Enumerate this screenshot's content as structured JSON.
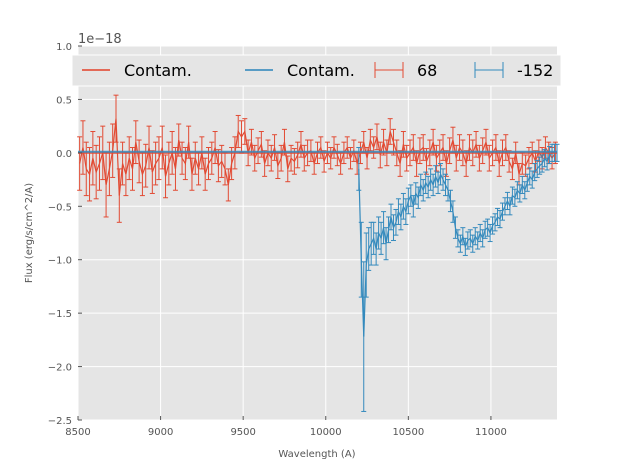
{
  "chart_data": {
    "type": "line",
    "title": "",
    "xlabel": "Wavelength (A)",
    "ylabel": "Flux (erg/s/cm^2/A)",
    "offset_text": "1e−18",
    "xlim": [
      8500,
      11400
    ],
    "ylim": [
      -2.5,
      1.0
    ],
    "x_ticks": [
      8500,
      9000,
      9500,
      10000,
      10500,
      11000
    ],
    "x_tick_labels": [
      "8500",
      "9000",
      "9500",
      "10000",
      "10500",
      "11000"
    ],
    "y_ticks": [
      1.0,
      0.5,
      0.0,
      -0.5,
      -1.0,
      -1.5,
      -2.0,
      -2.5
    ],
    "y_tick_labels": [
      "1.0",
      "0.5",
      "0.0",
      "−0.5",
      "−1.0",
      "−1.5",
      "−2.0",
      "−2.5"
    ],
    "grid": true,
    "legend_position": "top",
    "legend": [
      {
        "label": "Contam.",
        "kind": "line",
        "color": "#E24A33"
      },
      {
        "label": "Contam.",
        "kind": "line",
        "color": "#348ABD"
      },
      {
        "label": "68",
        "kind": "errorbar",
        "color": "#E24A33"
      },
      {
        "label": "-152",
        "kind": "errorbar",
        "color": "#348ABD"
      }
    ],
    "series": [
      {
        "name": "68",
        "color": "#E24A33",
        "x": [
          8510,
          8530,
          8550,
          8570,
          8590,
          8610,
          8630,
          8650,
          8670,
          8690,
          8710,
          8730,
          8750,
          8770,
          8790,
          8810,
          8830,
          8850,
          8870,
          8890,
          8910,
          8930,
          8950,
          8970,
          8990,
          9010,
          9030,
          9050,
          9070,
          9090,
          9110,
          9130,
          9150,
          9170,
          9190,
          9210,
          9230,
          9250,
          9270,
          9290,
          9310,
          9330,
          9350,
          9370,
          9390,
          9410,
          9430,
          9450,
          9470,
          9490,
          9510,
          9530,
          9550,
          9570,
          9590,
          9610,
          9630,
          9650,
          9670,
          9690,
          9710,
          9730,
          9750,
          9770,
          9790,
          9810,
          9830,
          9850,
          9870,
          9890,
          9910,
          9930,
          9950,
          9970,
          9990,
          10010,
          10030,
          10050,
          10070,
          10090,
          10110,
          10130,
          10150,
          10170,
          10190,
          10210,
          10230,
          10250,
          10270,
          10290,
          10310,
          10330,
          10350,
          10370,
          10390,
          10410,
          10430,
          10450,
          10470,
          10490,
          10510,
          10530,
          10550,
          10570,
          10590,
          10610,
          10630,
          10650,
          10670,
          10690,
          10710,
          10730,
          10750,
          10770,
          10790,
          10810,
          10830,
          10850,
          10870,
          10890,
          10910,
          10930,
          10950,
          10970,
          10990,
          11010,
          11030,
          11050,
          11070,
          11090,
          11110,
          11130,
          11150,
          11170,
          11190,
          11210,
          11230,
          11250,
          11270,
          11290,
          11310,
          11330,
          11350,
          11370,
          11390
        ],
        "y": [
          -0.1,
          0.05,
          -0.15,
          -0.2,
          -0.05,
          -0.18,
          -0.1,
          0.0,
          -0.3,
          -0.15,
          0.02,
          0.32,
          -0.4,
          -0.1,
          -0.2,
          -0.05,
          -0.15,
          0.1,
          -0.08,
          -0.2,
          -0.12,
          0.05,
          -0.18,
          -0.1,
          -0.05,
          0.05,
          -0.22,
          -0.1,
          0.0,
          -0.15,
          0.12,
          -0.05,
          -0.1,
          0.1,
          -0.2,
          -0.05,
          -0.15,
          0.0,
          -0.2,
          -0.1,
          -0.05,
          0.05,
          -0.12,
          -0.08,
          -0.15,
          -0.3,
          -0.1,
          0.0,
          0.2,
          0.15,
          0.2,
          0.0,
          0.1,
          -0.05,
          0.02,
          0.08,
          -0.1,
          0.0,
          -0.05,
          0.05,
          -0.12,
          -0.05,
          0.1,
          -0.15,
          -0.05,
          -0.08,
          -0.02,
          0.08,
          -0.05,
          0.0,
          0.02,
          -0.1,
          0.0,
          0.05,
          -0.08,
          0.0,
          -0.05,
          0.05,
          -0.02,
          -0.1,
          0.0,
          0.05,
          -0.05,
          0.02,
          -0.1,
          0.0,
          0.1,
          -0.05,
          0.12,
          0.05,
          0.15,
          -0.02,
          0.1,
          0.0,
          0.2,
          0.1,
          0.0,
          -0.1,
          0.08,
          -0.05,
          0.0,
          0.05,
          -0.1,
          0.02,
          0.05,
          -0.08,
          0.0,
          0.1,
          -0.05,
          0.0,
          0.05,
          -0.1,
          0.02,
          0.12,
          -0.05,
          0.05,
          0.0,
          -0.1,
          0.05,
          0.0,
          0.08,
          -0.05,
          0.02,
          0.1,
          -0.05,
          0.0,
          0.05,
          -0.1,
          0.0,
          0.05,
          -0.08,
          -0.15,
          0.0,
          -0.2,
          -0.1,
          -0.12,
          -0.05,
          0.0,
          -0.08,
          0.02,
          -0.05,
          0.05,
          0.0,
          -0.05,
          0.0
        ],
        "err": [
          0.25,
          0.25,
          0.25,
          0.25,
          0.25,
          0.25,
          0.25,
          0.25,
          0.3,
          0.25,
          0.25,
          0.22,
          0.25,
          0.2,
          0.2,
          0.2,
          0.2,
          0.2,
          0.2,
          0.2,
          0.2,
          0.2,
          0.2,
          0.2,
          0.2,
          0.2,
          0.2,
          0.2,
          0.2,
          0.2,
          0.15,
          0.15,
          0.15,
          0.15,
          0.15,
          0.15,
          0.15,
          0.15,
          0.15,
          0.15,
          0.15,
          0.15,
          0.15,
          0.15,
          0.15,
          0.15,
          0.15,
          0.15,
          0.15,
          0.15,
          0.12,
          0.12,
          0.12,
          0.12,
          0.12,
          0.12,
          0.12,
          0.12,
          0.12,
          0.12,
          0.12,
          0.12,
          0.12,
          0.12,
          0.12,
          0.12,
          0.12,
          0.12,
          0.12,
          0.12,
          0.1,
          0.1,
          0.1,
          0.1,
          0.1,
          0.1,
          0.1,
          0.1,
          0.1,
          0.1,
          0.1,
          0.1,
          0.1,
          0.1,
          0.1,
          0.1,
          0.1,
          0.1,
          0.1,
          0.1,
          0.12,
          0.12,
          0.12,
          0.12,
          0.12,
          0.12,
          0.12,
          0.12,
          0.12,
          0.12,
          0.12,
          0.12,
          0.12,
          0.12,
          0.12,
          0.12,
          0.12,
          0.12,
          0.12,
          0.12,
          0.12,
          0.12,
          0.12,
          0.12,
          0.12,
          0.12,
          0.12,
          0.12,
          0.12,
          0.12,
          0.12,
          0.12,
          0.12,
          0.12,
          0.12,
          0.12,
          0.12,
          0.12,
          0.12,
          0.12,
          0.1,
          0.1,
          0.1,
          0.1,
          0.1,
          0.1,
          0.1,
          0.1,
          0.1,
          0.1,
          0.1,
          0.1,
          0.1,
          0.1,
          0.1
        ]
      },
      {
        "name": "-152",
        "color": "#348ABD",
        "x": [
          10200,
          10215,
          10230,
          10245,
          10260,
          10275,
          10290,
          10305,
          10320,
          10335,
          10350,
          10365,
          10380,
          10395,
          10410,
          10425,
          10440,
          10455,
          10470,
          10485,
          10500,
          10515,
          10530,
          10545,
          10560,
          10575,
          10590,
          10605,
          10620,
          10635,
          10650,
          10665,
          10680,
          10695,
          10710,
          10725,
          10740,
          10755,
          10770,
          10785,
          10800,
          10815,
          10830,
          10845,
          10860,
          10875,
          10890,
          10905,
          10920,
          10935,
          10950,
          10965,
          10980,
          10995,
          11010,
          11025,
          11040,
          11055,
          11070,
          11085,
          11100,
          11115,
          11130,
          11145,
          11160,
          11175,
          11190,
          11205,
          11220,
          11235,
          11250,
          11265,
          11280,
          11295,
          11310,
          11325,
          11340,
          11355,
          11370,
          11385,
          11400
        ],
        "y": [
          -0.15,
          -1.0,
          -1.72,
          -1.05,
          -0.9,
          -0.85,
          -0.8,
          -0.9,
          -0.75,
          -0.8,
          -0.7,
          -0.85,
          -0.72,
          -0.6,
          -0.7,
          -0.65,
          -0.55,
          -0.6,
          -0.5,
          -0.55,
          -0.45,
          -0.4,
          -0.5,
          -0.38,
          -0.42,
          -0.3,
          -0.35,
          -0.28,
          -0.32,
          -0.25,
          -0.3,
          -0.22,
          -0.28,
          -0.2,
          -0.25,
          -0.3,
          -0.35,
          -0.45,
          -0.55,
          -0.7,
          -0.8,
          -0.85,
          -0.78,
          -0.88,
          -0.82,
          -0.8,
          -0.85,
          -0.78,
          -0.82,
          -0.75,
          -0.8,
          -0.72,
          -0.7,
          -0.75,
          -0.68,
          -0.65,
          -0.6,
          -0.62,
          -0.55,
          -0.5,
          -0.45,
          -0.5,
          -0.4,
          -0.42,
          -0.35,
          -0.38,
          -0.3,
          -0.35,
          -0.28,
          -0.22,
          -0.25,
          -0.18,
          -0.15,
          -0.12,
          -0.1,
          -0.05,
          -0.08,
          -0.02,
          0.0,
          0.0,
          0.0
        ],
        "err": [
          0.2,
          0.35,
          0.7,
          0.3,
          0.2,
          0.2,
          0.15,
          0.15,
          0.15,
          0.15,
          0.15,
          0.15,
          0.12,
          0.12,
          0.12,
          0.12,
          0.12,
          0.12,
          0.12,
          0.12,
          0.12,
          0.1,
          0.1,
          0.1,
          0.1,
          0.1,
          0.1,
          0.1,
          0.1,
          0.1,
          0.1,
          0.1,
          0.1,
          0.1,
          0.1,
          0.1,
          0.1,
          0.1,
          0.1,
          0.1,
          0.08,
          0.08,
          0.08,
          0.08,
          0.08,
          0.08,
          0.08,
          0.08,
          0.08,
          0.08,
          0.08,
          0.08,
          0.08,
          0.08,
          0.08,
          0.08,
          0.08,
          0.08,
          0.08,
          0.08,
          0.08,
          0.08,
          0.08,
          0.08,
          0.08,
          0.08,
          0.08,
          0.08,
          0.08,
          0.08,
          0.08,
          0.08,
          0.08,
          0.08,
          0.08,
          0.08,
          0.08,
          0.08,
          0.08,
          0.08,
          0.08
        ]
      },
      {
        "name": "",
        "kind": "contamination",
        "color": "#E24A33",
        "x": [
          8500,
          11400
        ],
        "y": [
          0.0,
          0.0
        ]
      },
      {
        "name": "",
        "kind": "contamination",
        "color": "#348ABD",
        "x": [
          8500,
          11400
        ],
        "y": [
          0.01,
          0.01
        ]
      }
    ]
  }
}
